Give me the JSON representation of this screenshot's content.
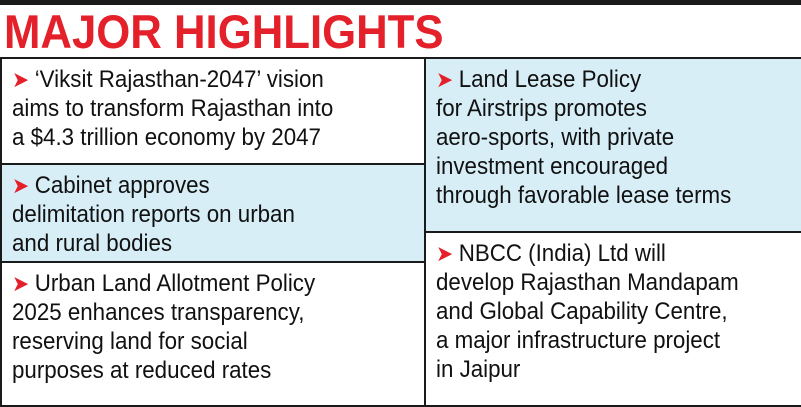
{
  "title": "MAJOR HIGHLIGHTS",
  "bullet_icon": "red-arrow-bullet-icon",
  "accent_color": "#e4202a",
  "highlight_color": "#d7eef7",
  "left_column": [
    {
      "lines": [
        "‘Viksit Rajasthan-2047’ vision",
        "aims to transform Rajasthan into",
        "a $4.3 trillion economy by 2047"
      ]
    },
    {
      "lines": [
        "Cabinet approves",
        "delimitation reports on urban",
        "and rural bodies"
      ]
    },
    {
      "lines": [
        "Urban Land Allotment Policy",
        "2025 enhances transparency,",
        "reserving land for social",
        "purposes at reduced rates"
      ]
    }
  ],
  "right_column": [
    {
      "lines": [
        "Land Lease Policy",
        "for Airstrips promotes",
        "aero-sports, with private",
        "investment encouraged",
        "through favorable lease terms"
      ]
    },
    {
      "lines": [
        "NBCC (India) Ltd will",
        "develop Rajasthan Mandapam",
        "and Global Capability Centre,",
        "a major infrastructure project",
        "in Jaipur"
      ]
    }
  ]
}
